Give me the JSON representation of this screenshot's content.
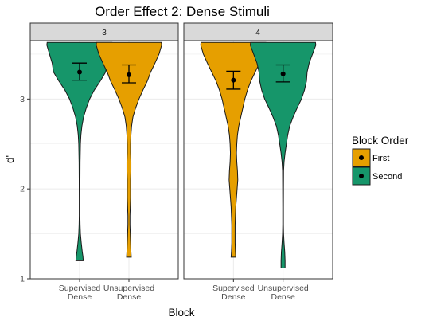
{
  "chart_data": {
    "type": "violin",
    "title": "Order Effect 2: Dense Stimuli",
    "xlabel": "Block",
    "ylabel": "d'",
    "ylim": [
      1.0,
      3.65
    ],
    "yticks": [
      1,
      2,
      3
    ],
    "grid": true,
    "categories": [
      "Supervised\nDense",
      "Unsupervised\nDense"
    ],
    "panels": [
      {
        "label": "3",
        "violins": [
          {
            "category": "Supervised\nDense",
            "group": "Second",
            "min": 1.2,
            "max": 3.63,
            "mean": 3.3,
            "ci": [
              3.21,
              3.4
            ],
            "profile": [
              [
                1.2,
                0.11
              ],
              [
                1.25,
                0.1
              ],
              [
                1.3,
                0.08
              ],
              [
                1.4,
                0.05
              ],
              [
                1.5,
                0.025
              ],
              [
                1.6,
                0.015
              ],
              [
                1.7,
                0.01
              ],
              [
                1.9,
                0.01
              ],
              [
                2.1,
                0.012
              ],
              [
                2.3,
                0.015
              ],
              [
                2.5,
                0.025
              ],
              [
                2.6,
                0.04
              ],
              [
                2.7,
                0.07
              ],
              [
                2.8,
                0.12
              ],
              [
                2.9,
                0.2
              ],
              [
                3.0,
                0.3
              ],
              [
                3.1,
                0.44
              ],
              [
                3.2,
                0.62
              ],
              [
                3.3,
                0.78
              ],
              [
                3.4,
                0.82
              ],
              [
                3.5,
                0.9
              ],
              [
                3.6,
                0.98
              ],
              [
                3.63,
                0.97
              ]
            ]
          },
          {
            "category": "Unsupervised\nDense",
            "group": "First",
            "min": 1.24,
            "max": 3.63,
            "mean": 3.27,
            "ci": [
              3.18,
              3.38
            ],
            "profile": [
              [
                1.24,
                0.07
              ],
              [
                1.3,
                0.06
              ],
              [
                1.4,
                0.05
              ],
              [
                1.5,
                0.04
              ],
              [
                1.6,
                0.03
              ],
              [
                1.7,
                0.03
              ],
              [
                1.8,
                0.04
              ],
              [
                1.9,
                0.05
              ],
              [
                2.0,
                0.05
              ],
              [
                2.1,
                0.05
              ],
              [
                2.2,
                0.06
              ],
              [
                2.3,
                0.06
              ],
              [
                2.4,
                0.05
              ],
              [
                2.5,
                0.05
              ],
              [
                2.6,
                0.06
              ],
              [
                2.7,
                0.08
              ],
              [
                2.8,
                0.12
              ],
              [
                2.9,
                0.2
              ],
              [
                3.0,
                0.3
              ],
              [
                3.1,
                0.42
              ],
              [
                3.2,
                0.55
              ],
              [
                3.3,
                0.65
              ],
              [
                3.4,
                0.78
              ],
              [
                3.5,
                0.9
              ],
              [
                3.6,
                0.98
              ],
              [
                3.63,
                0.97
              ]
            ]
          }
        ]
      },
      {
        "label": "4",
        "violins": [
          {
            "category": "Supervised\nDense",
            "group": "First",
            "min": 1.24,
            "max": 3.63,
            "mean": 3.21,
            "ci": [
              3.11,
              3.31
            ],
            "profile": [
              [
                1.24,
                0.07
              ],
              [
                1.3,
                0.06
              ],
              [
                1.4,
                0.05
              ],
              [
                1.5,
                0.05
              ],
              [
                1.6,
                0.05
              ],
              [
                1.7,
                0.06
              ],
              [
                1.8,
                0.07
              ],
              [
                1.9,
                0.09
              ],
              [
                2.0,
                0.11
              ],
              [
                2.1,
                0.13
              ],
              [
                2.2,
                0.12
              ],
              [
                2.3,
                0.1
              ],
              [
                2.4,
                0.09
              ],
              [
                2.5,
                0.1
              ],
              [
                2.6,
                0.12
              ],
              [
                2.7,
                0.16
              ],
              [
                2.8,
                0.22
              ],
              [
                2.9,
                0.28
              ],
              [
                3.0,
                0.34
              ],
              [
                3.1,
                0.42
              ],
              [
                3.2,
                0.52
              ],
              [
                3.3,
                0.65
              ],
              [
                3.4,
                0.78
              ],
              [
                3.5,
                0.9
              ],
              [
                3.6,
                0.98
              ],
              [
                3.63,
                0.97
              ]
            ]
          },
          {
            "category": "Unsupervised\nDense",
            "group": "Second",
            "min": 1.12,
            "max": 3.63,
            "mean": 3.28,
            "ci": [
              3.19,
              3.38
            ],
            "profile": [
              [
                1.12,
                0.06
              ],
              [
                1.2,
                0.06
              ],
              [
                1.3,
                0.05
              ],
              [
                1.4,
                0.03
              ],
              [
                1.5,
                0.015
              ],
              [
                1.6,
                0.01
              ],
              [
                1.8,
                0.01
              ],
              [
                2.0,
                0.012
              ],
              [
                2.2,
                0.015
              ],
              [
                2.3,
                0.03
              ],
              [
                2.4,
                0.06
              ],
              [
                2.5,
                0.1
              ],
              [
                2.6,
                0.14
              ],
              [
                2.7,
                0.2
              ],
              [
                2.8,
                0.3
              ],
              [
                2.9,
                0.42
              ],
              [
                3.0,
                0.55
              ],
              [
                3.1,
                0.64
              ],
              [
                3.2,
                0.7
              ],
              [
                3.3,
                0.72
              ],
              [
                3.4,
                0.78
              ],
              [
                3.5,
                0.88
              ],
              [
                3.6,
                0.98
              ],
              [
                3.63,
                0.97
              ]
            ]
          }
        ]
      }
    ],
    "legend": {
      "title": "Block Order",
      "placement": "right",
      "items": [
        {
          "label": "First",
          "color": "#E69F00"
        },
        {
          "label": "Second",
          "color": "#16966A"
        }
      ]
    }
  }
}
